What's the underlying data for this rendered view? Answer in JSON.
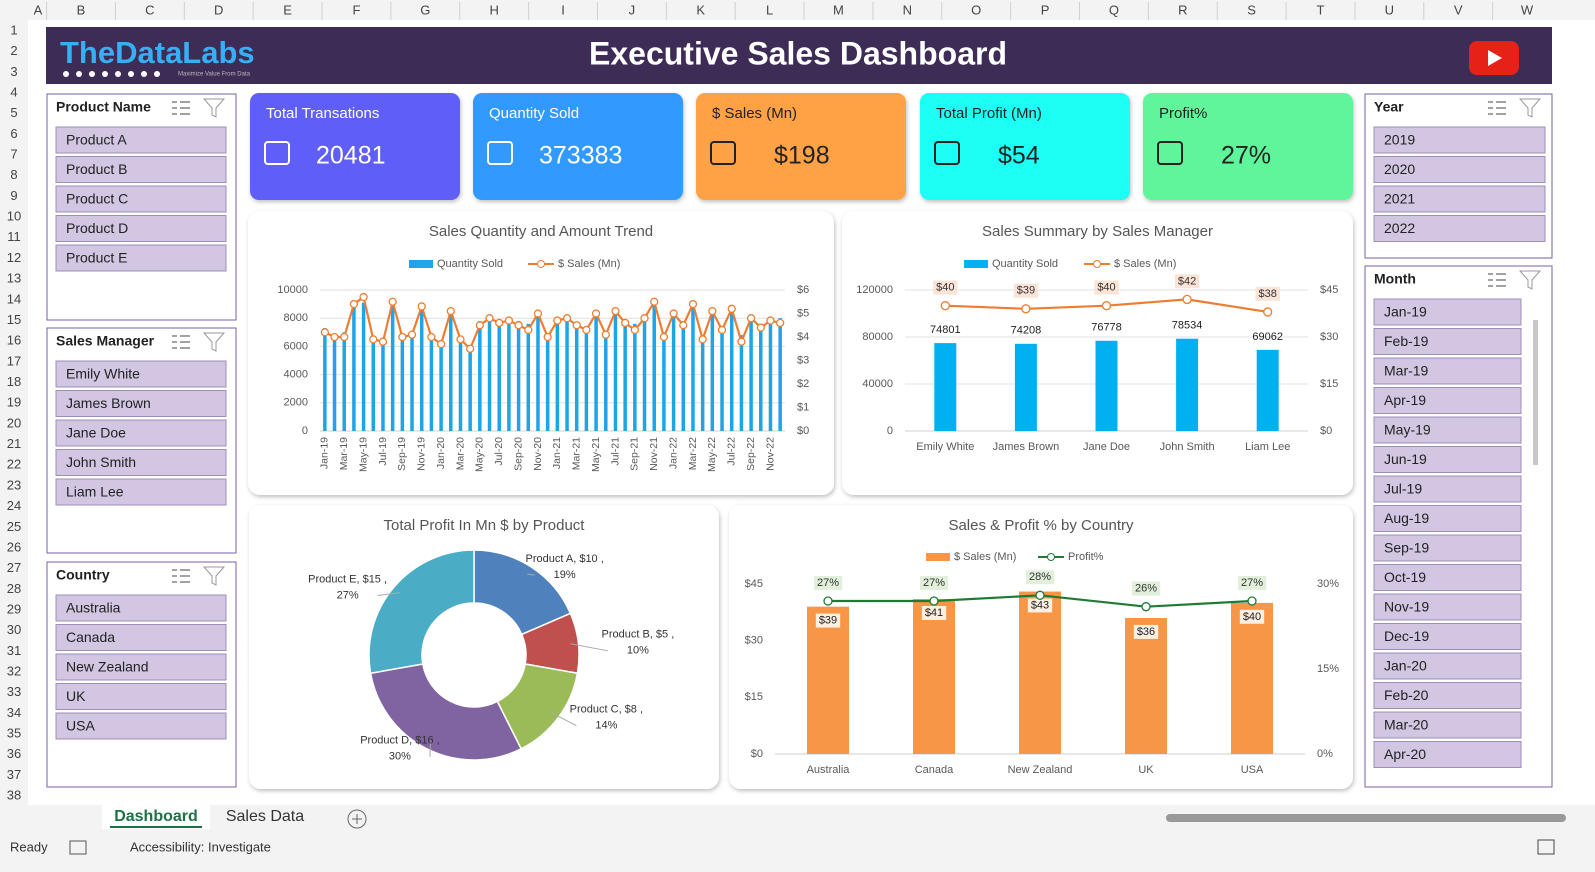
{
  "header": {
    "logo": "TheDataLabs",
    "tagline": "Maximize Value From Data",
    "title": "Executive Sales Dashboard"
  },
  "columns": [
    "A",
    "B",
    "C",
    "D",
    "E",
    "F",
    "G",
    "H",
    "I",
    "J",
    "K",
    "L",
    "M",
    "N",
    "O",
    "P",
    "Q",
    "R",
    "S",
    "T",
    "U",
    "V",
    "W"
  ],
  "rows": [
    1,
    2,
    3,
    4,
    5,
    6,
    7,
    8,
    9,
    10,
    11,
    12,
    13,
    14,
    15,
    16,
    17,
    18,
    19,
    20,
    21,
    22,
    23,
    24,
    25,
    26,
    27,
    28,
    29,
    30,
    31,
    32,
    33,
    34,
    35,
    36,
    37,
    38
  ],
  "slicers": [
    {
      "title": "Product Name",
      "items": [
        "Product A",
        "Product B",
        "Product C",
        "Product D",
        "Product E"
      ]
    },
    {
      "title": "Sales Manager",
      "items": [
        "Emily White",
        "James Brown",
        "Jane Doe",
        "John Smith",
        "Liam Lee"
      ]
    },
    {
      "title": "Country",
      "items": [
        "Australia",
        "Canada",
        "New Zealand",
        "UK",
        "USA"
      ]
    },
    {
      "title": "Year",
      "items": [
        "2019",
        "2020",
        "2021",
        "2022"
      ]
    },
    {
      "title": "Month",
      "items": [
        "Jan-19",
        "Feb-19",
        "Mar-19",
        "Apr-19",
        "May-19",
        "Jun-19",
        "Jul-19",
        "Aug-19",
        "Sep-19",
        "Oct-19",
        "Nov-19",
        "Dec-19",
        "Jan-20",
        "Feb-20",
        "Mar-20",
        "Apr-20"
      ]
    }
  ],
  "kpis": [
    {
      "label": "Total Transations",
      "value": "20481",
      "color": "#5f5ff7"
    },
    {
      "label": "Quantity Sold",
      "value": "373383",
      "color": "#3399ff"
    },
    {
      "label": "$ Sales (Mn)",
      "value": "$198",
      "color": "#ffa245"
    },
    {
      "label": "Total Profit (Mn)",
      "value": "$54",
      "color": "#1cfff4"
    },
    {
      "label": "Profit%",
      "value": "27%",
      "color": "#5ef59a"
    }
  ],
  "chart_data": [
    {
      "type": "bar_line",
      "title": "Sales Quantity and Amount Trend",
      "categories": [
        "Jan-19",
        null,
        "Mar-19",
        null,
        "May-19",
        null,
        "Jul-19",
        null,
        "Sep-19",
        null,
        "Nov-19",
        null,
        "Jan-20",
        null,
        "Mar-20",
        null,
        "May-20",
        null,
        "Jul-20",
        null,
        "Sep-20",
        null,
        "Nov-20",
        null,
        "Jan-21",
        null,
        "Mar-21",
        null,
        "May-21",
        null,
        "Jul-21",
        null,
        "Sep-21",
        null,
        "Nov-21",
        null,
        "Jan-22",
        null,
        "Mar-22",
        null,
        "May-22",
        null,
        "Jul-22",
        null,
        "Sep-22",
        null,
        "Nov-22",
        null
      ],
      "series": [
        {
          "name": "Quantity Sold",
          "color": "#1ea5e8",
          "type": "bar",
          "values": [
            7300,
            6500,
            7000,
            8800,
            9100,
            6300,
            6100,
            9000,
            6800,
            7000,
            8800,
            6600,
            6400,
            8600,
            6500,
            6100,
            7800,
            8200,
            7900,
            8100,
            7800,
            7600,
            8400,
            6900,
            7900,
            8100,
            7700,
            7400,
            8300,
            7000,
            8600,
            7800,
            7600,
            8100,
            9200,
            7000,
            8400,
            7800,
            9100,
            6800,
            8700,
            7400,
            8600,
            6800,
            8200,
            7600,
            7900,
            8000
          ]
        },
        {
          "name": "$ Sales (Mn)",
          "color": "#ed7d31",
          "type": "line",
          "axis": "y2",
          "values": [
            4.2,
            4.0,
            4.0,
            5.4,
            5.7,
            3.9,
            3.8,
            5.5,
            4.0,
            4.1,
            5.3,
            4.0,
            3.7,
            5.1,
            3.9,
            3.5,
            4.5,
            4.8,
            4.6,
            4.7,
            4.5,
            4.3,
            5.0,
            4.0,
            4.7,
            4.8,
            4.5,
            4.3,
            5.0,
            4.1,
            5.1,
            4.6,
            4.3,
            4.8,
            5.5,
            4.0,
            5.0,
            4.5,
            5.4,
            3.9,
            5.1,
            4.3,
            5.2,
            3.8,
            4.8,
            4.4,
            4.7,
            4.6
          ]
        }
      ],
      "ylim": [
        0,
        10000
      ],
      "yticks": [
        0,
        2000,
        4000,
        6000,
        8000,
        10000
      ],
      "y2lim": [
        0,
        6
      ],
      "y2ticks": [
        {
          "value": 0,
          "label": "$0"
        },
        {
          "value": 1,
          "label": "$1"
        },
        {
          "value": 2,
          "label": "$2"
        },
        {
          "value": 3,
          "label": "$3"
        },
        {
          "value": 4,
          "label": "$4"
        },
        {
          "value": 5,
          "label": "$5"
        },
        {
          "value": 6,
          "label": "$6"
        }
      ],
      "grid": true
    },
    {
      "type": "bar_line",
      "title": "Sales Summary by Sales Manager",
      "categories": [
        "Emily White",
        "James Brown",
        "Jane Doe",
        "John Smith",
        "Liam Lee"
      ],
      "series": [
        {
          "name": "Quantity Sold",
          "color": "#00b0f0",
          "type": "bar",
          "data_labels": true,
          "values": [
            74801,
            74208,
            76778,
            78534,
            69062
          ]
        },
        {
          "name": "$ Sales (Mn)",
          "color": "#ed7d31",
          "type": "line",
          "axis": "y2",
          "values": [
            40,
            39,
            40,
            42,
            38
          ],
          "value_labels": [
            "$40",
            "$39",
            "$40",
            "$42",
            "$38"
          ]
        }
      ],
      "ylim": [
        0,
        120000
      ],
      "yticks": [
        0,
        40000,
        80000,
        120000
      ],
      "y2lim": [
        0,
        45
      ],
      "y2ticks": [
        {
          "value": 0,
          "label": "$0"
        },
        {
          "value": 15,
          "label": "$15"
        },
        {
          "value": 30,
          "label": "$30"
        },
        {
          "value": 45,
          "label": "$45"
        }
      ],
      "grid": true
    },
    {
      "type": "donut",
      "title": "Total Profit In Mn $ by Product",
      "values": [
        10,
        5,
        8,
        16,
        15
      ],
      "value_labels": [
        "Product A, $10 ,",
        "Product B, $5 ,",
        "Product C, $8 ,",
        "Product D, $16 ,",
        "Product E, $15 ,"
      ],
      "percent_labels": [
        "19%",
        "10%",
        "14%",
        "30%",
        "27%"
      ],
      "colors": [
        "#4f81bd",
        "#c0504d",
        "#9bbb59",
        "#8064a2",
        "#4bacc6"
      ]
    },
    {
      "type": "bar_line",
      "title": "Sales & Profit % by Country",
      "categories": [
        "Australia",
        "Canada",
        "New Zealand",
        "UK",
        "USA"
      ],
      "series": [
        {
          "name": "$ Sales (Mn)",
          "color": "#f79646",
          "type": "bar",
          "values": [
            39,
            41,
            43,
            36,
            40
          ],
          "value_labels": [
            "$39",
            "$41",
            "$43",
            "$36",
            "$40"
          ]
        },
        {
          "name": "Profit%",
          "color": "#1e7b34",
          "type": "line",
          "axis": "y2",
          "values": [
            27,
            27,
            28,
            26,
            27
          ],
          "value_labels": [
            "27%",
            "27%",
            "28%",
            "26%",
            "27%"
          ]
        }
      ],
      "ylim": [
        0,
        45
      ],
      "yticks": [
        {
          "value": 0,
          "label": "$0"
        },
        {
          "value": 15,
          "label": "$15"
        },
        {
          "value": 30,
          "label": "$30"
        },
        {
          "value": 45,
          "label": "$45"
        }
      ],
      "y2lim": [
        0,
        30
      ],
      "y2ticks": [
        {
          "value": 0,
          "label": "0%"
        },
        {
          "value": 15,
          "label": "15%"
        },
        {
          "value": 30,
          "label": "30%"
        }
      ],
      "grid": false
    }
  ],
  "sheet_tabs": [
    "Dashboard",
    "Sales Data"
  ],
  "status": {
    "ready": "Ready",
    "accessibility": "Accessibility: Investigate"
  }
}
